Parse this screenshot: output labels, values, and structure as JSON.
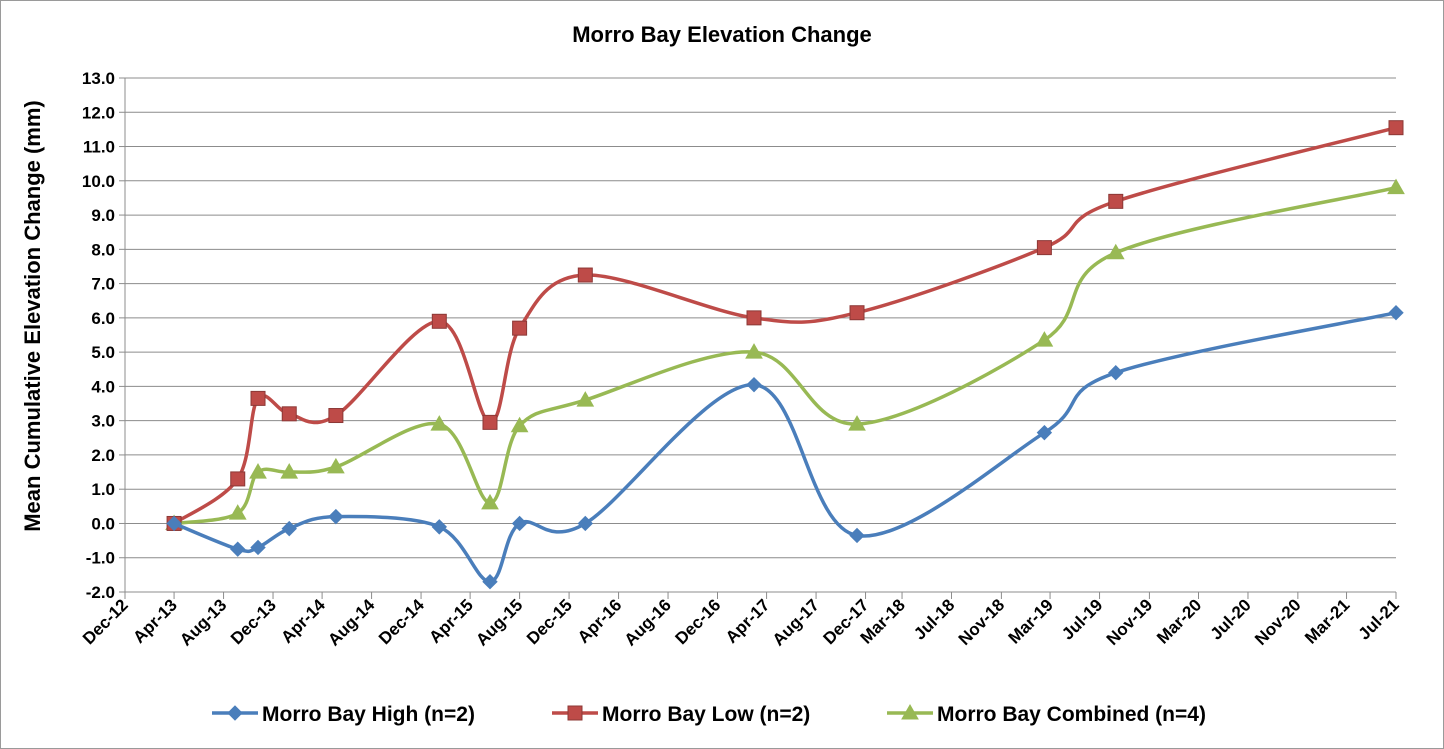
{
  "chart_data": {
    "type": "line",
    "title": "Morro Bay Elevation Change",
    "ylabel": "Mean Cumulative Elevation Change (mm)",
    "xlabel": "",
    "ylim": [
      -2.0,
      13.0
    ],
    "ytick_step": 1.0,
    "y_tick_labels": [
      "-2.0",
      "-1.0",
      "0.0",
      "1.0",
      "2.0",
      "3.0",
      "4.0",
      "5.0",
      "6.0",
      "7.0",
      "8.0",
      "9.0",
      "10.0",
      "11.0",
      "12.0",
      "13.0"
    ],
    "x_tick_labels": [
      "Dec-12",
      "Apr-13",
      "Aug-13",
      "Dec-13",
      "Apr-14",
      "Aug-14",
      "Dec-14",
      "Apr-15",
      "Aug-15",
      "Dec-15",
      "Apr-16",
      "Aug-16",
      "Dec-16",
      "Apr-17",
      "Aug-17",
      "Dec-17",
      "Mar-18",
      "Jul-18",
      "Nov-18",
      "Mar-19",
      "Jul-19",
      "Nov-19",
      "Mar-20",
      "Jul-20",
      "Nov-20",
      "Mar-21",
      "Jul-21"
    ],
    "x_tick_dates": [
      "2012-12-01",
      "2013-04-01",
      "2013-08-01",
      "2013-12-01",
      "2014-04-01",
      "2014-08-01",
      "2014-12-01",
      "2015-04-01",
      "2015-08-01",
      "2015-12-01",
      "2016-04-01",
      "2016-08-01",
      "2016-12-01",
      "2017-04-01",
      "2017-08-01",
      "2017-12-01",
      "2018-03-01",
      "2018-07-01",
      "2018-11-01",
      "2019-03-01",
      "2019-07-01",
      "2019-11-01",
      "2020-03-01",
      "2020-07-01",
      "2020-11-01",
      "2021-03-01",
      "2021-07-01"
    ],
    "grid": true,
    "legend_position": "bottom",
    "series": [
      {
        "name": "Morro Bay High (n=2)",
        "color": "#4a7ebb",
        "marker": "diamond",
        "x": [
          "2013-04-01",
          "2013-09-05",
          "2013-10-25",
          "2014-01-10",
          "2014-05-05",
          "2015-01-15",
          "2015-05-20",
          "2015-08-01",
          "2016-01-10",
          "2017-03-01",
          "2017-11-10",
          "2019-02-15",
          "2019-08-10",
          "2021-07-01"
        ],
        "values": [
          0.0,
          -0.75,
          -0.7,
          -0.15,
          0.2,
          -0.1,
          -1.7,
          0.0,
          0.0,
          4.05,
          -0.35,
          2.65,
          4.4,
          6.15
        ]
      },
      {
        "name": "Morro Bay Low (n=2)",
        "color": "#be4b48",
        "marker": "square",
        "x": [
          "2013-04-01",
          "2013-09-05",
          "2013-10-25",
          "2014-01-10",
          "2014-05-05",
          "2015-01-15",
          "2015-05-20",
          "2015-08-01",
          "2016-01-10",
          "2017-03-01",
          "2017-11-10",
          "2019-02-15",
          "2019-08-10",
          "2021-07-01"
        ],
        "values": [
          0.0,
          1.3,
          3.65,
          3.2,
          3.15,
          5.9,
          2.95,
          5.7,
          7.25,
          6.0,
          6.15,
          8.05,
          9.4,
          11.55
        ]
      },
      {
        "name": "Morro Bay Combined (n=4)",
        "color": "#98b954",
        "marker": "triangle",
        "x": [
          "2013-04-01",
          "2013-09-05",
          "2013-10-25",
          "2014-01-10",
          "2014-05-05",
          "2015-01-15",
          "2015-05-20",
          "2015-08-01",
          "2016-01-10",
          "2017-03-01",
          "2017-11-10",
          "2019-02-15",
          "2019-08-10",
          "2021-07-01"
        ],
        "values": [
          0.0,
          0.3,
          1.5,
          1.5,
          1.65,
          2.9,
          0.6,
          2.85,
          3.6,
          5.0,
          2.9,
          5.35,
          7.9,
          9.8
        ]
      }
    ]
  }
}
